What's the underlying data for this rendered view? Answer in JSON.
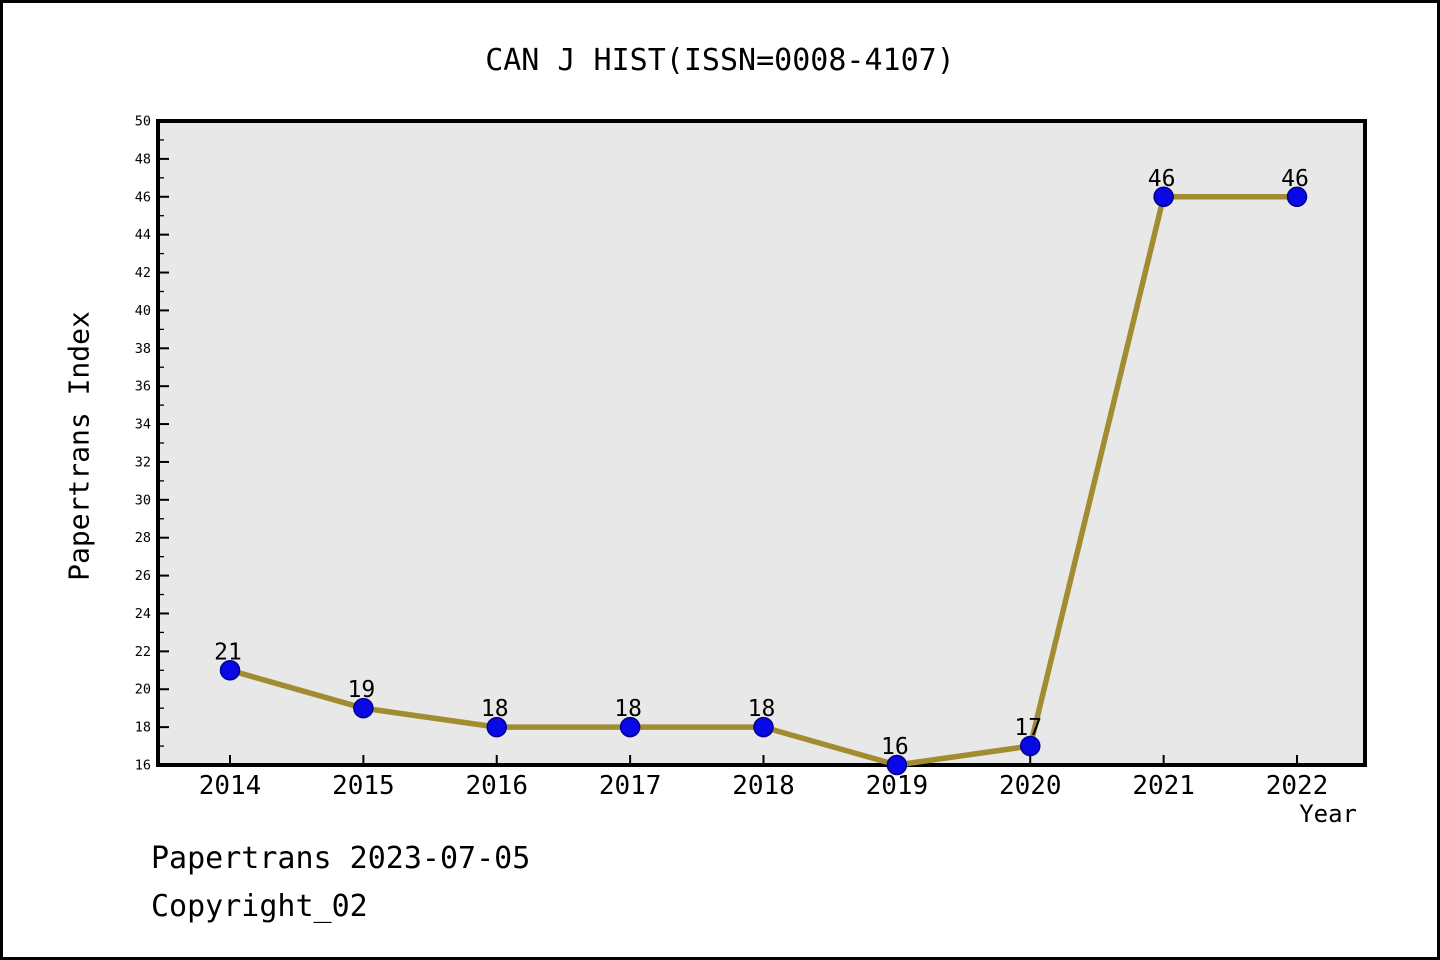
{
  "title": "CAN J HIST(ISSN=0008-4107)",
  "footer": {
    "line1": "Papertrans 2023-07-05",
    "line2": "Copyright_02"
  },
  "chart_data": {
    "type": "line",
    "title": "CAN J HIST(ISSN=0008-4107)",
    "xlabel": "Year",
    "ylabel": "Papertrans Index",
    "categories": [
      "2014",
      "2015",
      "2016",
      "2017",
      "2018",
      "2019",
      "2020",
      "2021",
      "2022"
    ],
    "values": [
      21,
      19,
      18,
      18,
      18,
      16,
      17,
      46,
      46
    ],
    "ylim": [
      16,
      50
    ],
    "ytick_major_step": 2,
    "ytick_minor_step": 1,
    "grid": false,
    "legend": "none",
    "colors": {
      "line": "#a28c32",
      "marker_fill": "#0909e6",
      "marker_edge": "#00008b",
      "plot_bg": "#e8e8e8",
      "page_bg": "#ffffff",
      "axis": "#000000",
      "text": "#000000"
    }
  }
}
